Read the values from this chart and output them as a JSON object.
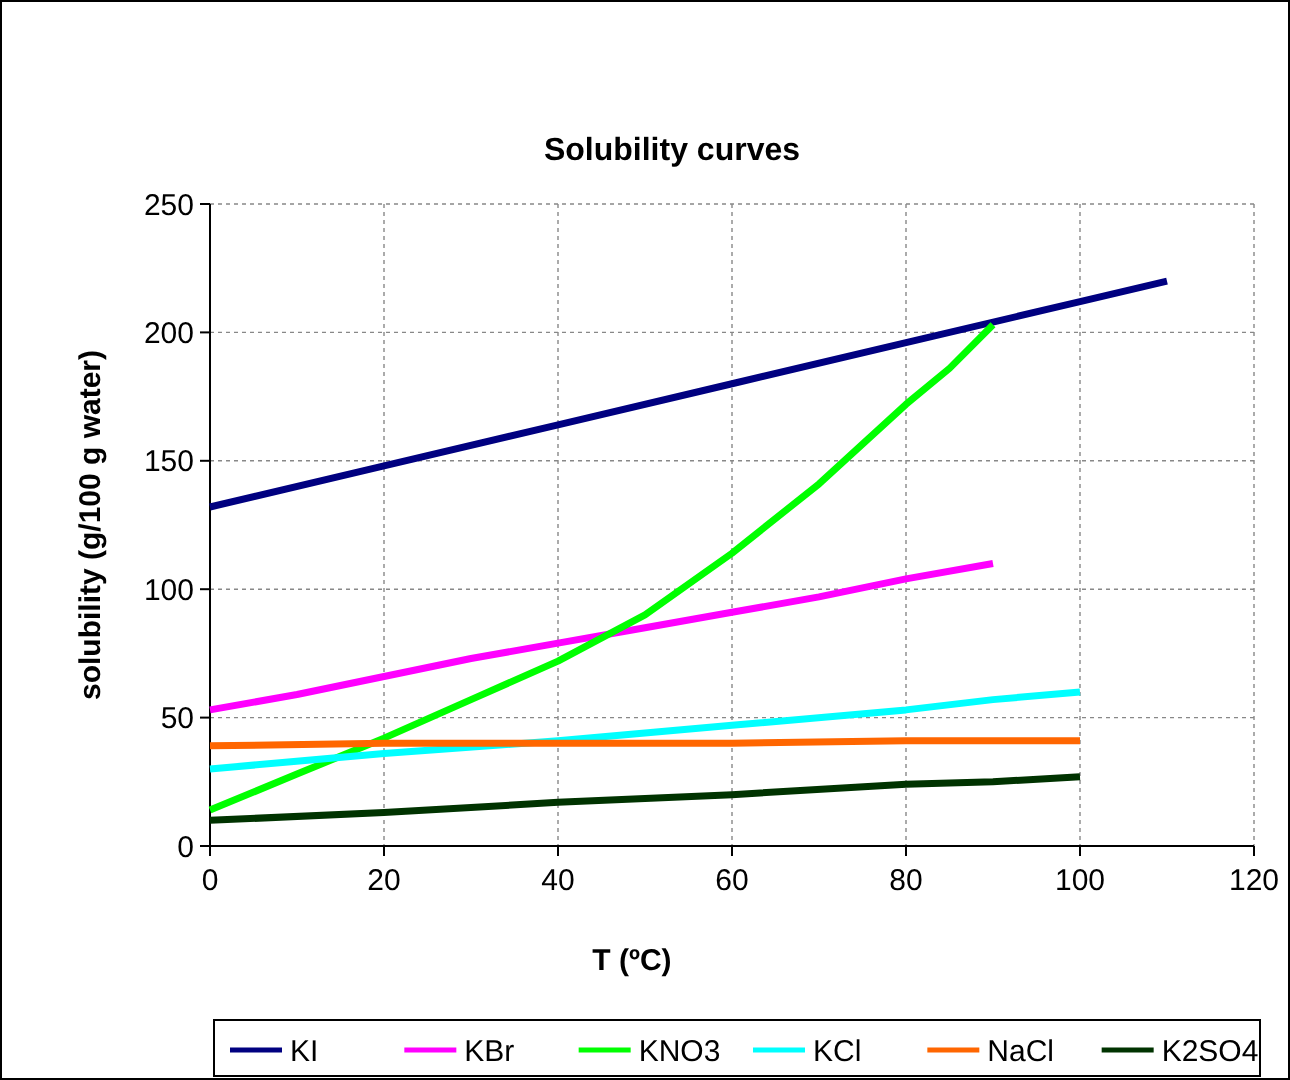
{
  "chart_data": {
    "type": "line",
    "title": "Solubility curves",
    "xlabel": "T (ºC)",
    "ylabel": "solubility (g/100 g water)",
    "xlim": [
      0,
      120
    ],
    "xticks": [
      0,
      20,
      40,
      60,
      80,
      100,
      120
    ],
    "ylim": [
      0,
      250
    ],
    "yticks": [
      0,
      50,
      100,
      150,
      200,
      250
    ],
    "grid": true,
    "legend": "bottom",
    "marker": "none",
    "line_style": "solid",
    "series": [
      {
        "name": "KI",
        "color": "#000080",
        "x": [
          0,
          20,
          40,
          60,
          80,
          100,
          110
        ],
        "values": [
          132,
          148,
          164,
          180,
          196,
          212,
          220
        ]
      },
      {
        "name": "KBr",
        "color": "#ff00ff",
        "x": [
          0,
          10,
          20,
          30,
          40,
          50,
          60,
          70,
          80,
          90
        ],
        "values": [
          53,
          59,
          66,
          73,
          79,
          85,
          91,
          97,
          104,
          110
        ]
      },
      {
        "name": "KNO3",
        "color": "#00ff00",
        "x": [
          0,
          10,
          20,
          30,
          40,
          50,
          60,
          70,
          80,
          85,
          90
        ],
        "values": [
          14,
          28,
          42,
          57,
          72,
          90,
          114,
          141,
          172,
          186,
          203
        ]
      },
      {
        "name": "KCl",
        "color": "#00ffff",
        "x": [
          0,
          20,
          40,
          60,
          80,
          90,
          100
        ],
        "values": [
          30,
          36,
          41,
          47,
          53,
          57,
          60
        ]
      },
      {
        "name": "NaCl",
        "color": "#ff6600",
        "x": [
          0,
          20,
          40,
          60,
          80,
          100
        ],
        "values": [
          39,
          40,
          40,
          40,
          41,
          41
        ]
      },
      {
        "name": "K2SO4",
        "color": "#003300",
        "x": [
          0,
          20,
          40,
          60,
          80,
          90,
          100
        ],
        "values": [
          10,
          13,
          17,
          20,
          24,
          25,
          27
        ]
      }
    ]
  }
}
